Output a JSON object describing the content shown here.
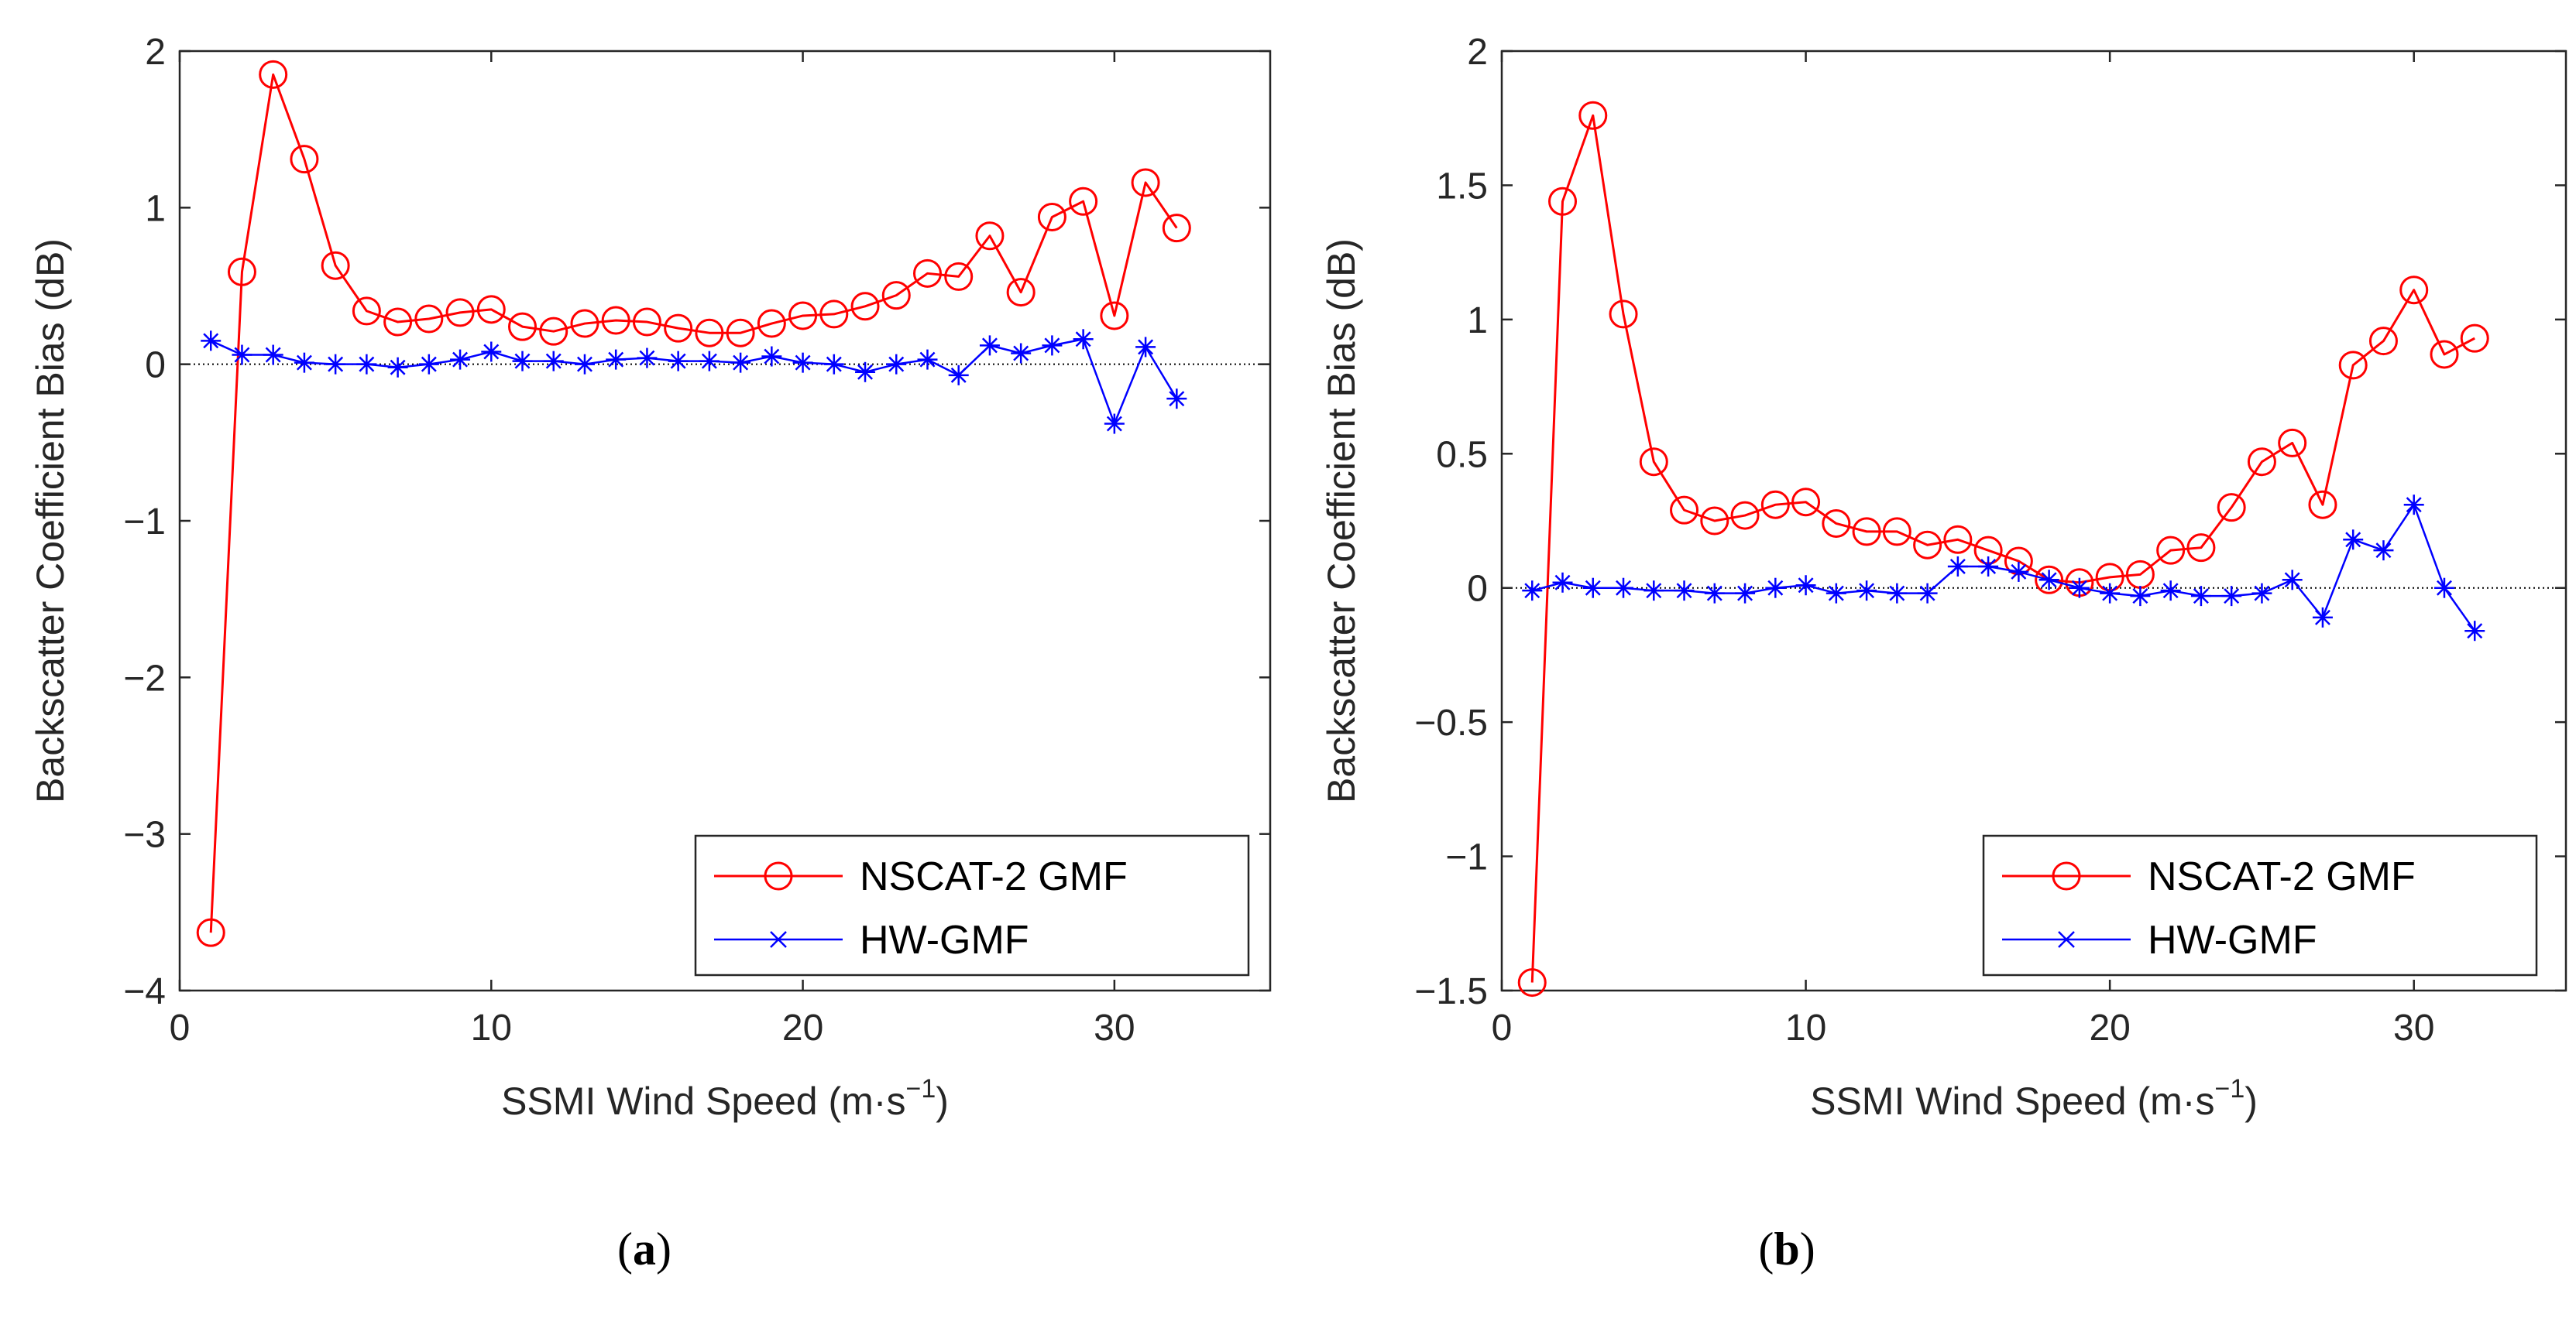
{
  "colors": {
    "nscat": "#ff0000",
    "hw": "#0000ff",
    "axis": "#262626",
    "zero_line": "#000000"
  },
  "chart_data": [
    {
      "type": "line",
      "panel": "a",
      "caption_open": "(",
      "caption_letter": "a",
      "caption_close": ")",
      "title": "",
      "xlabel": "SSMI Wind Speed (m·s",
      "xlabel_sup": "−1",
      "xlabel_close": ")",
      "ylabel": "Backscatter Coefficient Bias (dB)",
      "xlim": [
        0,
        35
      ],
      "ylim": [
        -4,
        2
      ],
      "xticks": [
        0,
        10,
        20,
        30
      ],
      "xtick_labels": [
        "0",
        "10",
        "20",
        "30"
      ],
      "yticks": [
        -4,
        -3,
        -2,
        -1,
        0,
        1,
        2
      ],
      "ytick_labels": [
        "−4",
        "−3",
        "−2",
        "−1",
        "0",
        "1",
        "2"
      ],
      "zero_line": true,
      "legend_position": "bottom-right",
      "series": [
        {
          "name": "NSCAT-2 GMF",
          "marker": "circle",
          "x": [
            1,
            2,
            3,
            4,
            5,
            6,
            7,
            8,
            9,
            10,
            11,
            12,
            13,
            14,
            15,
            16,
            17,
            18,
            19,
            20,
            21,
            22,
            23,
            24,
            25,
            26,
            27,
            28,
            29,
            30,
            31,
            32
          ],
          "y": [
            -3.63,
            0.59,
            1.85,
            1.31,
            0.63,
            0.34,
            0.27,
            0.29,
            0.33,
            0.35,
            0.24,
            0.21,
            0.26,
            0.28,
            0.27,
            0.23,
            0.2,
            0.2,
            0.26,
            0.31,
            0.32,
            0.37,
            0.44,
            0.58,
            0.56,
            0.82,
            0.46,
            0.94,
            1.04,
            0.31,
            1.16,
            0.87
          ]
        },
        {
          "name": "HW-GMF",
          "marker": "asterisk",
          "x": [
            1,
            2,
            3,
            4,
            5,
            6,
            7,
            8,
            9,
            10,
            11,
            12,
            13,
            14,
            15,
            16,
            17,
            18,
            19,
            20,
            21,
            22,
            23,
            24,
            25,
            26,
            27,
            28,
            29,
            30,
            31,
            32
          ],
          "y": [
            0.15,
            0.06,
            0.06,
            0.01,
            0.0,
            0.0,
            -0.02,
            0.0,
            0.03,
            0.08,
            0.02,
            0.02,
            0.0,
            0.03,
            0.04,
            0.02,
            0.02,
            0.01,
            0.05,
            0.01,
            0.0,
            -0.05,
            0.0,
            0.03,
            -0.07,
            0.12,
            0.07,
            0.12,
            0.16,
            -0.38,
            0.11,
            -0.22
          ]
        }
      ]
    },
    {
      "type": "line",
      "panel": "b",
      "caption_open": "(",
      "caption_letter": "b",
      "caption_close": ")",
      "title": "",
      "xlabel": "SSMI Wind Speed (m·s",
      "xlabel_sup": "−1",
      "xlabel_close": ")",
      "ylabel": "Backscatter Coefficient Bias (dB)",
      "xlim": [
        0,
        35
      ],
      "ylim": [
        -1.5,
        2
      ],
      "xticks": [
        0,
        10,
        20,
        30
      ],
      "xtick_labels": [
        "0",
        "10",
        "20",
        "30"
      ],
      "yticks": [
        -1.5,
        -1,
        -0.5,
        0,
        0.5,
        1,
        1.5,
        2
      ],
      "ytick_labels": [
        "−1.5",
        "−1",
        "−0.5",
        "0",
        "0.5",
        "1",
        "1.5",
        "2"
      ],
      "zero_line": true,
      "legend_position": "bottom-right",
      "series": [
        {
          "name": "NSCAT-2 GMF",
          "marker": "circle",
          "x": [
            1,
            2,
            3,
            4,
            5,
            6,
            7,
            8,
            9,
            10,
            11,
            12,
            13,
            14,
            15,
            16,
            17,
            18,
            19,
            20,
            21,
            22,
            23,
            24,
            25,
            26,
            27,
            28,
            29,
            30,
            31,
            32
          ],
          "y": [
            -1.47,
            1.44,
            1.76,
            1.02,
            0.47,
            0.29,
            0.25,
            0.27,
            0.31,
            0.32,
            0.24,
            0.21,
            0.21,
            0.16,
            0.18,
            0.14,
            0.1,
            0.03,
            0.02,
            0.04,
            0.05,
            0.14,
            0.15,
            0.3,
            0.47,
            0.54,
            0.31,
            0.83,
            0.92,
            1.11,
            0.87,
            0.93
          ]
        },
        {
          "name": "HW-GMF",
          "marker": "asterisk",
          "x": [
            1,
            2,
            3,
            4,
            5,
            6,
            7,
            8,
            9,
            10,
            11,
            12,
            13,
            14,
            15,
            16,
            17,
            18,
            19,
            20,
            21,
            22,
            23,
            24,
            25,
            26,
            27,
            28,
            29,
            30,
            31,
            32
          ],
          "y": [
            -0.01,
            0.02,
            0.0,
            0.0,
            -0.01,
            -0.01,
            -0.02,
            -0.02,
            0.0,
            0.01,
            -0.02,
            -0.01,
            -0.02,
            -0.02,
            0.08,
            0.08,
            0.06,
            0.03,
            0.0,
            -0.02,
            -0.03,
            -0.01,
            -0.03,
            -0.03,
            -0.02,
            0.03,
            -0.11,
            0.18,
            0.14,
            0.31,
            0.0,
            -0.16
          ]
        }
      ]
    }
  ]
}
